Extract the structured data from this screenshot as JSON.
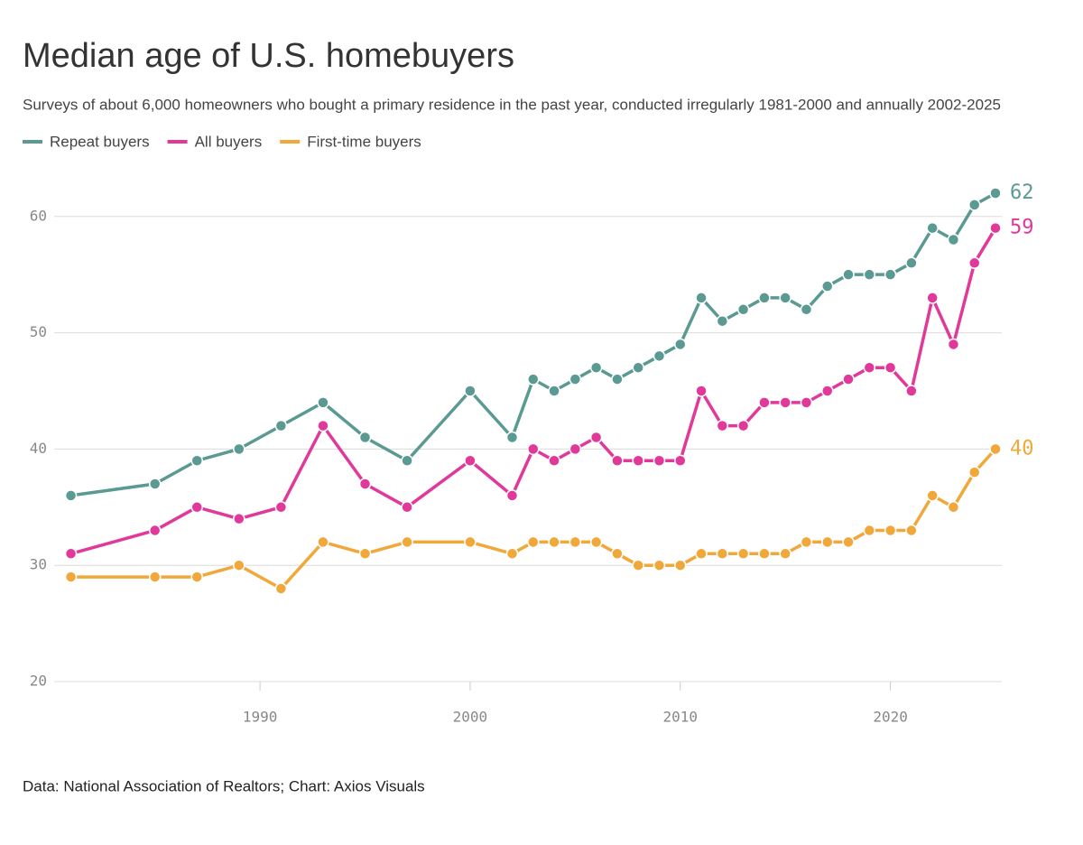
{
  "chart_data": {
    "type": "line",
    "title": "Median age of U.S. homebuyers",
    "subtitle": "Surveys of about 6,000 homeowners who bought a primary residence in the past year, conducted irregularly 1981-2000 and annually 2002-2025",
    "source": "Data: National Association of Realtors; Chart: Axios Visuals",
    "x": [
      1981,
      1985,
      1987,
      1989,
      1991,
      1993,
      1995,
      1997,
      2000,
      2002,
      2003,
      2004,
      2005,
      2006,
      2007,
      2008,
      2009,
      2010,
      2011,
      2012,
      2013,
      2014,
      2015,
      2016,
      2017,
      2018,
      2019,
      2020,
      2021,
      2022,
      2023,
      2024,
      2025
    ],
    "series": [
      {
        "name": "Repeat buyers",
        "color": "#5a9a92",
        "values": [
          36,
          37,
          39,
          40,
          42,
          44,
          41,
          39,
          45,
          41,
          46,
          45,
          46,
          47,
          46,
          47,
          48,
          49,
          53,
          51,
          52,
          53,
          53,
          52,
          54,
          55,
          55,
          55,
          56,
          59,
          58,
          61,
          62
        ]
      },
      {
        "name": "All buyers",
        "color": "#e0399a",
        "values": [
          31,
          33,
          35,
          34,
          35,
          42,
          37,
          35,
          39,
          36,
          40,
          39,
          40,
          41,
          39,
          39,
          39,
          39,
          45,
          42,
          42,
          44,
          44,
          44,
          45,
          46,
          47,
          47,
          45,
          53,
          49,
          56,
          59
        ]
      },
      {
        "name": "First-time buyers",
        "color": "#f0a83a",
        "values": [
          29,
          29,
          29,
          30,
          28,
          32,
          31,
          32,
          32,
          31,
          32,
          32,
          32,
          32,
          31,
          30,
          30,
          30,
          31,
          31,
          31,
          31,
          31,
          32,
          32,
          32,
          33,
          33,
          33,
          36,
          35,
          38,
          40
        ]
      }
    ],
    "xlim": [
      1978.7,
      2025.3
    ],
    "xticks": [
      1990,
      2000,
      2010,
      2020
    ],
    "ylim": [
      20,
      62
    ],
    "yticks": [
      20,
      30,
      40,
      50,
      60
    ],
    "grid": true
  }
}
